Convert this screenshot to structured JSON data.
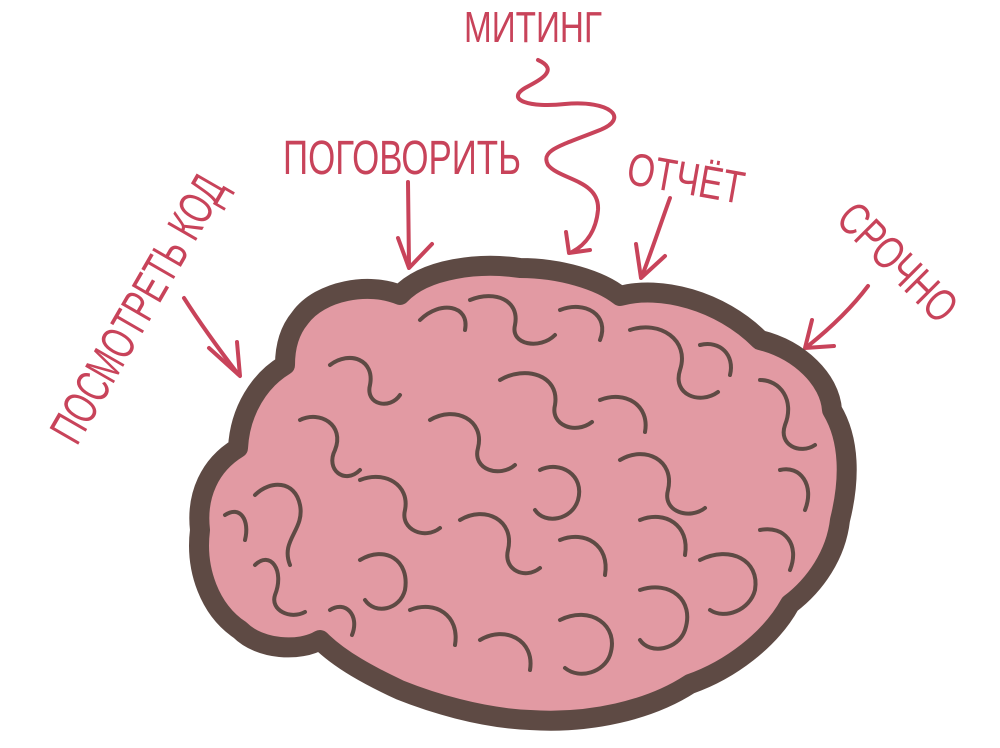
{
  "labels": {
    "miting": "МИТИНГ",
    "pogovorit": "ПОГОВОРИТЬ",
    "otchet": "ОТЧЁТ",
    "srochno": "СРОЧНО",
    "posmotret_kod": "ПОСМОТРЕТЬ КОД"
  },
  "colors": {
    "label": "#c8435a",
    "arrow": "#c8435a",
    "brain_fill": "#e29aa3",
    "brain_outline": "#5e4a44",
    "brain_folds": "#5e4a44",
    "background": "#ffffff"
  },
  "icons": {
    "brain": "brain-icon"
  }
}
